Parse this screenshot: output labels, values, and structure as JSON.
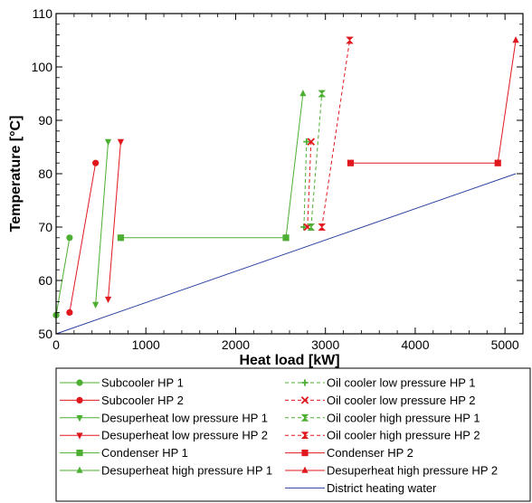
{
  "chart_data": {
    "type": "line",
    "xlabel": "Heat load [kW]",
    "ylabel": "Temperature [°C]",
    "xlim": [
      0,
      5200
    ],
    "ylim": [
      50,
      110
    ],
    "xticks": [
      0,
      1000,
      2000,
      3000,
      4000,
      5000
    ],
    "yticks": [
      50,
      60,
      70,
      80,
      90,
      100,
      110
    ],
    "grid": false,
    "legend_position": "below",
    "series": [
      {
        "name": "Subcooler HP 1",
        "color": "#4caf32",
        "dash": "solid",
        "marker": "circle",
        "x": [
          0,
          150
        ],
        "y": [
          53.5,
          68
        ]
      },
      {
        "name": "Subcooler HP 2",
        "color": "#e0181e",
        "dash": "solid",
        "marker": "circle",
        "x": [
          150,
          440
        ],
        "y": [
          54,
          82
        ]
      },
      {
        "name": "Desuperheat low pressure HP 1",
        "color": "#4caf32",
        "dash": "solid",
        "marker": "triangle-down",
        "x": [
          440,
          580
        ],
        "y": [
          55.5,
          86
        ]
      },
      {
        "name": "Desuperheat low pressure HP 2",
        "color": "#e0181e",
        "dash": "solid",
        "marker": "triangle-down",
        "x": [
          580,
          720
        ],
        "y": [
          56.5,
          86
        ]
      },
      {
        "name": "Condenser HP 1",
        "color": "#4caf32",
        "dash": "solid",
        "marker": "square",
        "x": [
          720,
          2560
        ],
        "y": [
          68,
          68
        ]
      },
      {
        "name": "Desuperheat high pressure HP 1",
        "color": "#4caf32",
        "dash": "solid",
        "marker": "triangle-up",
        "x": [
          2560,
          2750
        ],
        "y": [
          68,
          95
        ]
      },
      {
        "name": "Oil cooler low pressure HP 1",
        "color": "#4caf32",
        "dash": "dashed",
        "marker": "plus",
        "x": [
          2760,
          2790
        ],
        "y": [
          70,
          86
        ]
      },
      {
        "name": "Oil cooler low pressure HP 2",
        "color": "#e0181e",
        "dash": "dashed",
        "marker": "x",
        "x": [
          2800,
          2840
        ],
        "y": [
          70,
          86
        ]
      },
      {
        "name": "Oil cooler high pressure HP 1",
        "color": "#4caf32",
        "dash": "dashed",
        "marker": "hourglass",
        "x": [
          2840,
          2960
        ],
        "y": [
          70,
          95
        ]
      },
      {
        "name": "Oil cooler high pressure HP 2",
        "color": "#e0181e",
        "dash": "dashed",
        "marker": "hourglass",
        "x": [
          2960,
          3270
        ],
        "y": [
          70,
          105
        ]
      },
      {
        "name": "Condenser HP 2",
        "color": "#e0181e",
        "dash": "solid",
        "marker": "square",
        "x": [
          3280,
          4920
        ],
        "y": [
          82,
          82
        ]
      },
      {
        "name": "Desuperheat high pressure HP 2",
        "color": "#e0181e",
        "dash": "solid",
        "marker": "triangle-up",
        "x": [
          4920,
          5120
        ],
        "y": [
          82,
          105
        ]
      },
      {
        "name": "District heating water",
        "color": "#2a3fa0",
        "dash": "solid",
        "marker": "none",
        "x": [
          0,
          5120
        ],
        "y": [
          50,
          80
        ]
      }
    ]
  }
}
